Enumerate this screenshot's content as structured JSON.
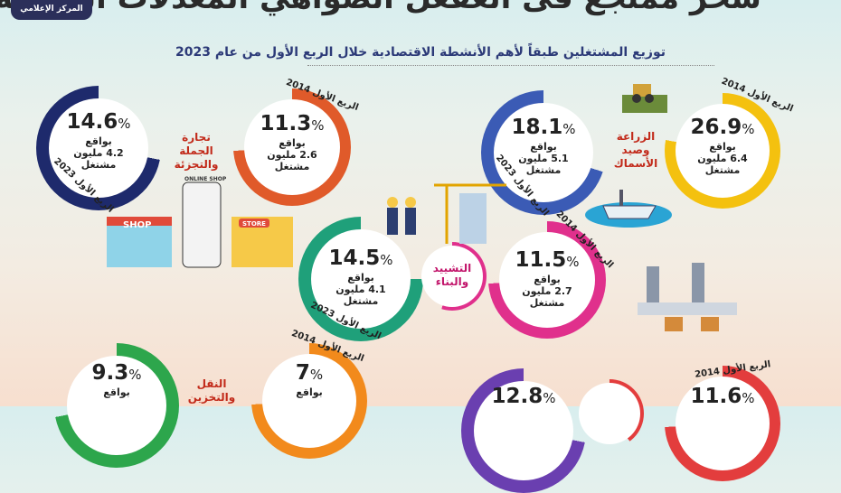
{
  "header": {
    "headline": "سحر ممتجع فى العفعل الصواهي المعدلات العقافة",
    "logo": "المركز الإعلامي"
  },
  "subtitle": "توزيع المشتغلين طبقاً لأهم الأنشطة الاقتصادية خلال الربع الأول من عام 2023",
  "common": {
    "of": "بواقع",
    "worker": "مشتغل"
  },
  "colors": {
    "agri": "#f4c10f",
    "agri_old": "#3b5bb5",
    "trade": "#e05a2a",
    "trade_old": "#1e2a6c",
    "constr": "#e0308c",
    "constr_old": "#1fa07a",
    "transport": "#f28a1c",
    "transport_old": "#2da64c",
    "industry": "#e33d3d",
    "industry_old": "#6a3fb0"
  },
  "sectors": {
    "agri": {
      "label": "الزراعة وصيد الأسماك",
      "p2014": "26.9",
      "m2014": "6.4 مليون",
      "p2023": "18.1",
      "m2023": "5.1 مليون",
      "y2014": "الربع الأول 2014",
      "y2023": "الربع الأول 2023"
    },
    "trade": {
      "label": "تجارة الجملة والتجزئة",
      "p2014": "11.3",
      "m2014": "2.6 مليون",
      "p2023": "14.6",
      "m2023": "4.2 مليون",
      "y2014": "الربع الأول 2014",
      "y2023": "الربع الأول 2023"
    },
    "constr": {
      "label": "التشييد والبناء",
      "p2014": "11.5",
      "m2014": "2.7 مليون",
      "p2023": "14.5",
      "m2023": "4.1 مليون",
      "y2014": "الربع الأول 2014",
      "y2023": "الربع الأول 2023"
    },
    "transport": {
      "label": "النقل والتخزين",
      "p2014": "7",
      "m2014": "",
      "p2023": "9.3",
      "m2023": "",
      "y2014": "الربع الأول 2014",
      "y2023": ""
    },
    "industry": {
      "label": "",
      "p2014": "11.6",
      "p2023": "12.8",
      "y2014": "الربع الأول 2014"
    }
  },
  "shop": {
    "shop": "SHOP",
    "store": "STORE",
    "online": "ONLINE SHOP"
  }
}
